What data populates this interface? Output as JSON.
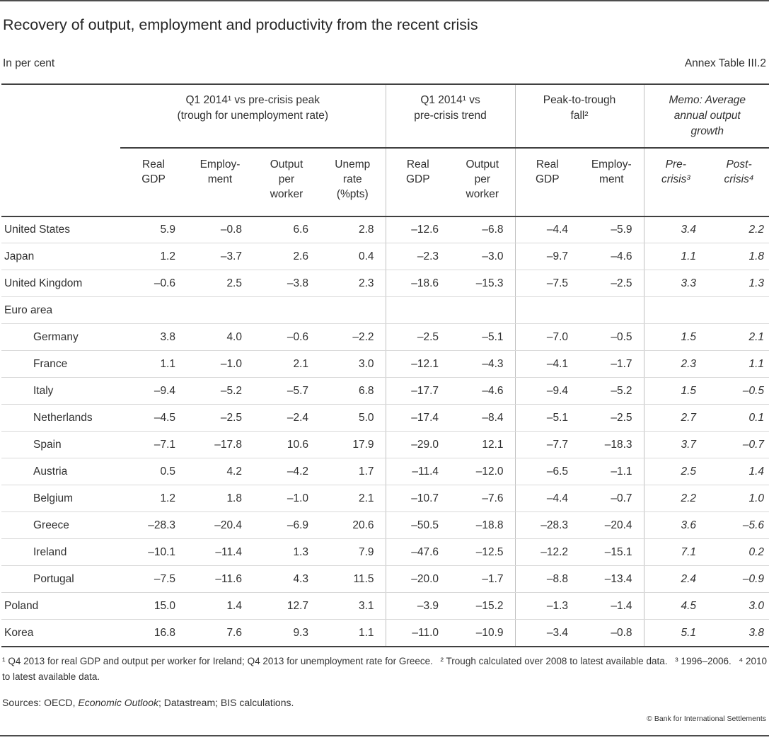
{
  "page": {
    "title": "Recovery of output, employment and productivity from the recent crisis",
    "subtitle_left": "In per cent",
    "subtitle_right": "Annex Table III.2",
    "copyright": "© Bank for International Settlements"
  },
  "table": {
    "groups": [
      {
        "label": "Q1 2014¹ vs pre-crisis peak\n(trough for unemployment rate)",
        "italic": false,
        "columns": [
          "Real\nGDP",
          "Employ-\nment",
          "Output\nper\nworker",
          "Unemp\nrate\n(%pts)"
        ]
      },
      {
        "label": "Q1 2014¹ vs\npre-crisis trend",
        "italic": false,
        "columns": [
          "Real\nGDP",
          "Output\nper\nworker"
        ]
      },
      {
        "label": "Peak-to-trough\nfall²",
        "italic": false,
        "columns": [
          "Real\nGDP",
          "Employ-\nment"
        ]
      },
      {
        "label": "Memo: Average\nannual output\ngrowth",
        "italic": true,
        "columns": [
          "Pre-\ncrisis³",
          "Post-\ncrisis⁴"
        ]
      }
    ],
    "rows": [
      {
        "label": "United States",
        "indent": false,
        "values": [
          "5.9",
          "–0.8",
          "6.6",
          "2.8",
          "–12.6",
          "–6.8",
          "–4.4",
          "–5.9",
          "3.4",
          "2.2"
        ]
      },
      {
        "label": "Japan",
        "indent": false,
        "values": [
          "1.2",
          "–3.7",
          "2.6",
          "0.4",
          "–2.3",
          "–3.0",
          "–9.7",
          "–4.6",
          "1.1",
          "1.8"
        ]
      },
      {
        "label": "United Kingdom",
        "indent": false,
        "values": [
          "–0.6",
          "2.5",
          "–3.8",
          "2.3",
          "–18.6",
          "–15.3",
          "–7.5",
          "–2.5",
          "3.3",
          "1.3"
        ]
      },
      {
        "label": "Euro area",
        "indent": false,
        "values": [
          "",
          "",
          "",
          "",
          "",
          "",
          "",
          "",
          "",
          ""
        ]
      },
      {
        "label": "Germany",
        "indent": true,
        "values": [
          "3.8",
          "4.0",
          "–0.6",
          "–2.2",
          "–2.5",
          "–5.1",
          "–7.0",
          "–0.5",
          "1.5",
          "2.1"
        ]
      },
      {
        "label": "France",
        "indent": true,
        "values": [
          "1.1",
          "–1.0",
          "2.1",
          "3.0",
          "–12.1",
          "–4.3",
          "–4.1",
          "–1.7",
          "2.3",
          "1.1"
        ]
      },
      {
        "label": "Italy",
        "indent": true,
        "values": [
          "–9.4",
          "–5.2",
          "–5.7",
          "6.8",
          "–17.7",
          "–4.6",
          "–9.4",
          "–5.2",
          "1.5",
          "–0.5"
        ]
      },
      {
        "label": "Netherlands",
        "indent": true,
        "values": [
          "–4.5",
          "–2.5",
          "–2.4",
          "5.0",
          "–17.4",
          "–8.4",
          "–5.1",
          "–2.5",
          "2.7",
          "0.1"
        ]
      },
      {
        "label": "Spain",
        "indent": true,
        "values": [
          "–7.1",
          "–17.8",
          "10.6",
          "17.9",
          "–29.0",
          "12.1",
          "–7.7",
          "–18.3",
          "3.7",
          "–0.7"
        ]
      },
      {
        "label": "Austria",
        "indent": true,
        "values": [
          "0.5",
          "4.2",
          "–4.2",
          "1.7",
          "–11.4",
          "–12.0",
          "–6.5",
          "–1.1",
          "2.5",
          "1.4"
        ]
      },
      {
        "label": "Belgium",
        "indent": true,
        "values": [
          "1.2",
          "1.8",
          "–1.0",
          "2.1",
          "–10.7",
          "–7.6",
          "–4.4",
          "–0.7",
          "2.2",
          "1.0"
        ]
      },
      {
        "label": "Greece",
        "indent": true,
        "values": [
          "–28.3",
          "–20.4",
          "–6.9",
          "20.6",
          "–50.5",
          "–18.8",
          "–28.3",
          "–20.4",
          "3.6",
          "–5.6"
        ]
      },
      {
        "label": "Ireland",
        "indent": true,
        "values": [
          "–10.1",
          "–11.4",
          "1.3",
          "7.9",
          "–47.6",
          "–12.5",
          "–12.2",
          "–15.1",
          "7.1",
          "0.2"
        ]
      },
      {
        "label": "Portugal",
        "indent": true,
        "values": [
          "–7.5",
          "–11.6",
          "4.3",
          "11.5",
          "–20.0",
          "–1.7",
          "–8.8",
          "–13.4",
          "2.4",
          "–0.9"
        ]
      },
      {
        "label": "Poland",
        "indent": false,
        "values": [
          "15.0",
          "1.4",
          "12.7",
          "3.1",
          "–3.9",
          "–15.2",
          "–1.3",
          "–1.4",
          "4.5",
          "3.0"
        ]
      },
      {
        "label": "Korea",
        "indent": false,
        "values": [
          "16.8",
          "7.6",
          "9.3",
          "1.1",
          "–11.0",
          "–10.9",
          "–3.4",
          "–0.8",
          "5.1",
          "3.8"
        ]
      }
    ]
  },
  "footnotes": [
    "¹ Q4 2013 for real GDP and output per worker for Ireland; Q4 2013 for unemployment rate for Greece.",
    "² Trough calculated over 2008 to latest available data.",
    "³ 1996–2006.",
    "⁴ 2010 to latest available data."
  ],
  "sources": {
    "prefix": "Sources: OECD, ",
    "italic": "Economic Outlook",
    "suffix": "; Datastream; BIS calculations."
  }
}
